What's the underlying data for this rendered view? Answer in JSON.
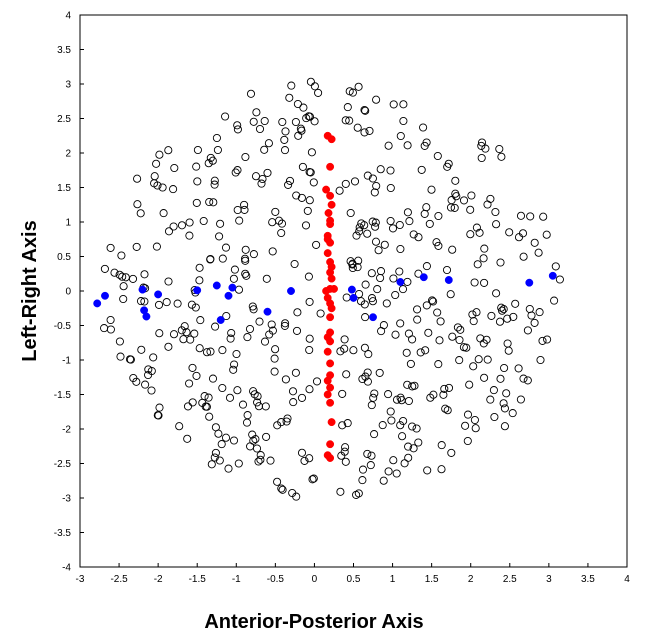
{
  "chart_data": {
    "type": "scatter",
    "xlabel": "Anterior-Posterior Axis",
    "ylabel": "Left-Right Axis",
    "xlim": [
      -3,
      4
    ],
    "ylim": [
      -4,
      4
    ],
    "xticks": [
      -3,
      -2.5,
      -2,
      -1.5,
      -1,
      -0.5,
      0,
      0.5,
      1,
      1.5,
      2,
      2.5,
      3,
      3.5,
      4
    ],
    "yticks": [
      -4,
      -3.5,
      -3,
      -2.5,
      -2,
      -1.5,
      -1,
      -0.5,
      0,
      0.5,
      1,
      1.5,
      2,
      2.5,
      3,
      3.5,
      4
    ],
    "grid": false,
    "legend": "none",
    "colors": {
      "open": "#000000",
      "red": "#ff0000",
      "blue": "#0000ff"
    },
    "series": [
      {
        "marker": "open-circle",
        "color": "#000000",
        "distribution": {
          "center": [
            0.2,
            0
          ],
          "rx": 2.95,
          "ry": 3.05,
          "count": 540
        }
      },
      {
        "marker": "filled-circle",
        "color": "#ff0000",
        "points": [
          [
            0.17,
            2.25
          ],
          [
            0.22,
            2.2
          ],
          [
            0.2,
            1.8
          ],
          [
            0.15,
            1.47
          ],
          [
            0.2,
            1.38
          ],
          [
            0.22,
            1.25
          ],
          [
            0.18,
            1.13
          ],
          [
            0.2,
            1.02
          ],
          [
            0.2,
            0.97
          ],
          [
            0.17,
            0.8
          ],
          [
            0.17,
            0.75
          ],
          [
            0.2,
            0.7
          ],
          [
            0.17,
            0.55
          ],
          [
            0.2,
            0.42
          ],
          [
            0.22,
            0.35
          ],
          [
            0.2,
            0.27
          ],
          [
            0.22,
            0.18
          ],
          [
            0.2,
            0.03
          ],
          [
            0.25,
            0.03
          ],
          [
            0.15,
            0.0
          ],
          [
            0.17,
            -0.1
          ],
          [
            0.2,
            -0.18
          ],
          [
            0.22,
            -0.25
          ],
          [
            0.2,
            -0.38
          ],
          [
            0.2,
            -0.6
          ],
          [
            0.17,
            -0.67
          ],
          [
            0.2,
            -0.73
          ],
          [
            0.17,
            -0.88
          ],
          [
            0.2,
            -1.05
          ],
          [
            0.2,
            -1.22
          ],
          [
            0.17,
            -1.3
          ],
          [
            0.2,
            -1.4
          ],
          [
            0.17,
            -1.5
          ],
          [
            0.2,
            -1.62
          ],
          [
            0.22,
            -1.9
          ],
          [
            0.2,
            -2.22
          ],
          [
            0.17,
            -2.38
          ],
          [
            0.2,
            -2.42
          ]
        ]
      },
      {
        "marker": "filled-circle",
        "color": "#0000ff",
        "points": [
          [
            -2.78,
            -0.18
          ],
          [
            -2.68,
            -0.07
          ],
          [
            -2.2,
            0.02
          ],
          [
            -2.15,
            -0.37
          ],
          [
            -2.18,
            -0.28
          ],
          [
            -2.0,
            -0.05
          ],
          [
            -1.5,
            0.01
          ],
          [
            -1.25,
            0.08
          ],
          [
            -1.2,
            -0.42
          ],
          [
            -1.1,
            -0.07
          ],
          [
            -1.05,
            0.05
          ],
          [
            -0.6,
            -0.3
          ],
          [
            -0.3,
            0.0
          ],
          [
            0.48,
            0.02
          ],
          [
            0.5,
            -0.1
          ],
          [
            0.75,
            -0.38
          ],
          [
            1.1,
            0.13
          ],
          [
            1.4,
            0.2
          ],
          [
            1.72,
            0.16
          ],
          [
            2.75,
            0.12
          ],
          [
            3.05,
            0.22
          ]
        ]
      }
    ]
  }
}
